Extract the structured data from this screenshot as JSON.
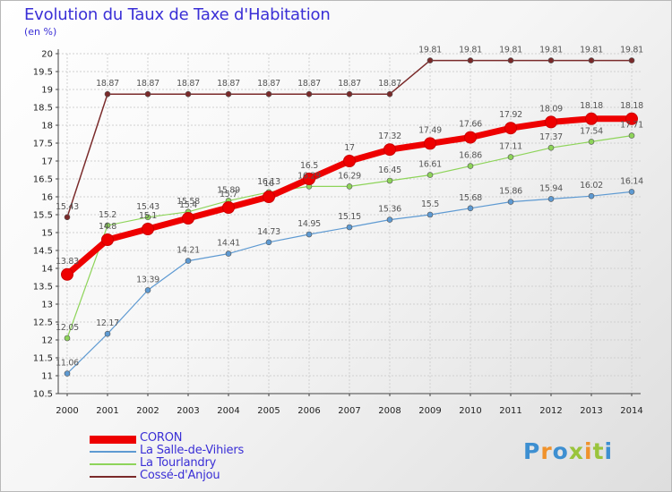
{
  "title": "Evolution du Taux de Taxe d'Habitation",
  "subtitle": "(en %)",
  "logo": {
    "text": "Proxiti",
    "colors": [
      "#3d8fd1",
      "#f0922b",
      "#3d8fd1",
      "#9ac43c",
      "#f0922b",
      "#9ac43c",
      "#3d8fd1"
    ]
  },
  "chart_data": {
    "type": "line",
    "title": "Evolution du Taux de Taxe d'Habitation",
    "ylabel": "(en %)",
    "xlabel": "",
    "x": [
      "2000",
      "2001",
      "2002",
      "2003",
      "2004",
      "2005",
      "2006",
      "2007",
      "2008",
      "2009",
      "2010",
      "2011",
      "2012",
      "2013",
      "2014"
    ],
    "ylim": [
      10.5,
      20
    ],
    "yticks": [
      "10.5",
      "11",
      "11.5",
      "12",
      "12.5",
      "13",
      "13.5",
      "14",
      "14.5",
      "15",
      "15.5",
      "16",
      "16.5",
      "17",
      "17.5",
      "18",
      "18.5",
      "19",
      "19.5",
      "20"
    ],
    "grid": true,
    "legend_position": "bottom-left",
    "series": [
      {
        "name": "CORON",
        "color": "#ee0000",
        "values": [
          13.83,
          14.8,
          15.1,
          15.4,
          15.7,
          16.0,
          16.5,
          17.0,
          17.32,
          17.49,
          17.66,
          17.92,
          18.09,
          18.18,
          18.18
        ],
        "labels": [
          "13.83",
          "14.8",
          "15.1",
          "15.4",
          "15.7",
          "16",
          "16.5",
          "17",
          "17.32",
          "17.49",
          "17.66",
          "17.92",
          "18.09",
          "18.18",
          "18.18"
        ]
      },
      {
        "name": "La Salle-de-Vihiers",
        "color": "#5e9ad2",
        "values": [
          11.06,
          12.17,
          13.39,
          14.21,
          14.41,
          14.73,
          14.95,
          15.15,
          15.36,
          15.5,
          15.68,
          15.86,
          15.94,
          16.02,
          16.14
        ],
        "labels": [
          "11.06",
          "12.17",
          "13.39",
          "14.21",
          "14.41",
          "14.73",
          "14.95",
          "15.15",
          "15.36",
          "15.5",
          "15.68",
          "15.86",
          "15.94",
          "16.02",
          "16.14"
        ]
      },
      {
        "name": "La Tourlandry",
        "color": "#8ed45a",
        "values": [
          12.05,
          15.2,
          15.43,
          15.58,
          15.89,
          16.13,
          16.29,
          16.29,
          16.45,
          16.61,
          16.86,
          17.11,
          17.37,
          17.54,
          17.71
        ],
        "labels": [
          "12.05",
          "15.2",
          "15.43",
          "15.58",
          "15.89",
          "16.13",
          "16.29",
          "16.29",
          "16.45",
          "16.61",
          "16.86",
          "17.11",
          "17.37",
          "17.54",
          "17.71"
        ]
      },
      {
        "name": "Cossé-d'Anjou",
        "color": "#7a2a2a",
        "values": [
          15.43,
          18.87,
          18.87,
          18.87,
          18.87,
          18.87,
          18.87,
          18.87,
          18.87,
          19.81,
          19.81,
          19.81,
          19.81,
          19.81,
          19.81
        ],
        "labels": [
          "15.43",
          "18.87",
          "18.87",
          "18.87",
          "18.87",
          "18.87",
          "18.87",
          "18.87",
          "18.87",
          "19.81",
          "19.81",
          "19.81",
          "19.81",
          "19.81",
          "19.81"
        ]
      }
    ]
  }
}
